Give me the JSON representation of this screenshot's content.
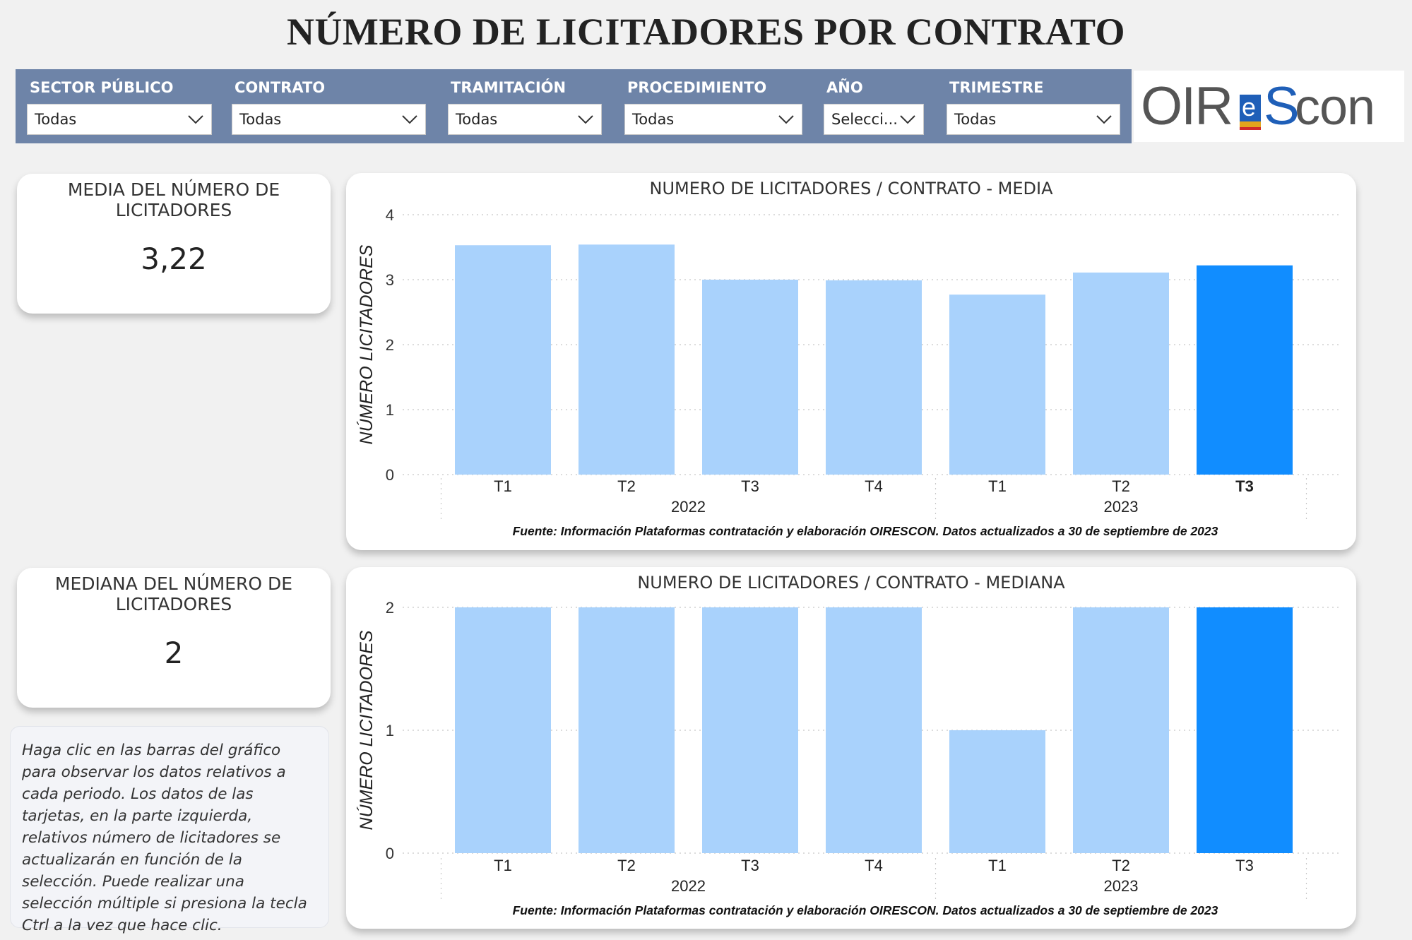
{
  "page_title": "NÚMERO DE LICITADORES POR CONTRATO",
  "filters": [
    {
      "label": "SECTOR PÚBLICO",
      "value": "Todas"
    },
    {
      "label": "CONTRATO",
      "value": "Todas"
    },
    {
      "label": "TRAMITACIÓN",
      "value": "Todas"
    },
    {
      "label": "PROCEDIMIENTO",
      "value": "Todas"
    },
    {
      "label": "AÑO",
      "value": "Selecci..."
    },
    {
      "label": "TRIMESTRE",
      "value": "Todas"
    }
  ],
  "logo": {
    "text": "OIReScon"
  },
  "kpi_mean": {
    "title": "MEDIA DEL NÚMERO DE LICITADORES",
    "value": "3,22"
  },
  "kpi_median": {
    "title": "MEDIANA DEL NÚMERO DE LICITADORES",
    "value": "2"
  },
  "help_text": "Haga clic en las barras del gráfico para observar los datos relativos a cada periodo. Los datos de las tarjetas, en la parte izquierda, relativos número de licitadores se actualizarán en función de la selección. Puede realizar una selección múltiple si presiona la tecla Ctrl a la vez que hace clic.",
  "colors": {
    "bar": "#a9d2fc",
    "bar_selected": "#118dff",
    "filter_bar": "#6e84a8"
  },
  "chart_data": [
    {
      "type": "bar",
      "title": "NUMERO DE LICITADORES / CONTRATO - MEDIA",
      "ylabel": "NÚMERO LICITADORES",
      "xlabel": "",
      "categories": [
        "T1",
        "T2",
        "T3",
        "T4",
        "T1",
        "T2",
        "T3"
      ],
      "groups": [
        {
          "label": "2022",
          "count": 4
        },
        {
          "label": "2023",
          "count": 3
        }
      ],
      "values": [
        3.53,
        3.54,
        3.0,
        2.99,
        2.77,
        3.11,
        3.22
      ],
      "selected_index": 6,
      "ylim": [
        0,
        4
      ],
      "yticks": [
        0,
        1,
        2,
        3,
        4
      ],
      "grid": true,
      "source": "Fuente: Información Plataformas contratación y elaboración OIRESCON. Datos actualizados a 30 de septiembre de 2023"
    },
    {
      "type": "bar",
      "title": "NUMERO DE LICITADORES / CONTRATO - MEDIANA",
      "ylabel": "NÚMERO LICITADORES",
      "xlabel": "",
      "categories": [
        "T1",
        "T2",
        "T3",
        "T4",
        "T1",
        "T2",
        "T3"
      ],
      "groups": [
        {
          "label": "2022",
          "count": 4
        },
        {
          "label": "2023",
          "count": 3
        }
      ],
      "values": [
        2,
        2,
        2,
        2,
        1,
        2,
        2
      ],
      "selected_index": 6,
      "ylim": [
        0,
        2
      ],
      "yticks": [
        0,
        1,
        2
      ],
      "grid": true,
      "source": "Fuente: Información Plataformas contratación y elaboración OIRESCON. Datos actualizados a 30 de septiembre de 2023"
    }
  ]
}
